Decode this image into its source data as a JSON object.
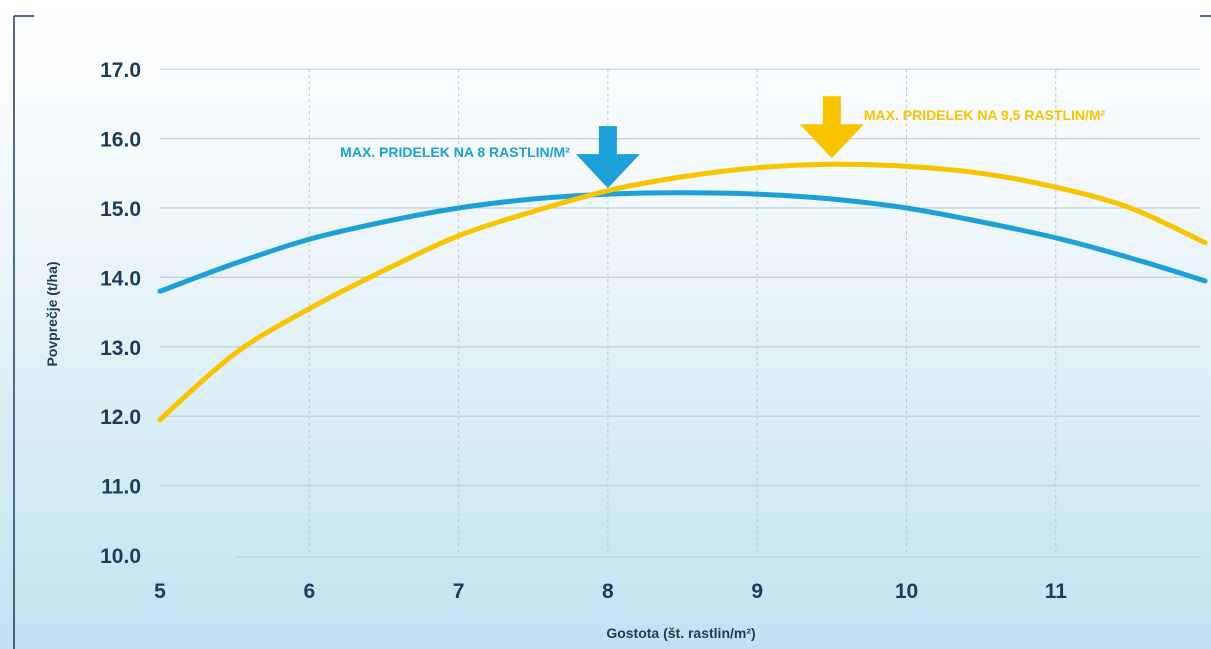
{
  "chart_data": {
    "type": "line",
    "xlabel": "Gostota (št. rastlin/m²)",
    "ylabel": "Povprečje (t/ha)",
    "xlim": [
      5,
      12
    ],
    "ylim": [
      10,
      17
    ],
    "x_ticks": [
      "5",
      "6",
      "7",
      "8",
      "9",
      "10",
      "11"
    ],
    "y_ticks": [
      "10.0",
      "11.0",
      "12.0",
      "13.0",
      "14.0",
      "15.0",
      "16.0",
      "17.0"
    ],
    "grid": true,
    "series": [
      {
        "color": "#1da0d8",
        "x": [
          5,
          5.5,
          6,
          6.5,
          7,
          7.5,
          8,
          8.5,
          9,
          9.5,
          10,
          10.5,
          11,
          11.5,
          12
        ],
        "y": [
          13.8,
          14.2,
          14.55,
          14.8,
          15.0,
          15.13,
          15.2,
          15.22,
          15.2,
          15.13,
          15.0,
          14.8,
          14.57,
          14.28,
          13.95
        ]
      },
      {
        "color": "#f8c400",
        "x": [
          5,
          5.5,
          6,
          6.5,
          7,
          7.5,
          8,
          8.5,
          9,
          9.5,
          10,
          10.5,
          11,
          11.5,
          12
        ],
        "y": [
          11.95,
          12.9,
          13.55,
          14.1,
          14.6,
          14.95,
          15.25,
          15.45,
          15.58,
          15.63,
          15.6,
          15.5,
          15.3,
          15.0,
          14.5
        ]
      }
    ],
    "annotations": [
      {
        "text": "MAX. PRIDELEK NA 8 RASTLIN/M²",
        "x": 8,
        "y": 15.2,
        "color": "#1da0d8"
      },
      {
        "text": "MAX. PRIDELEK NA 9,5 RASTLIN/M²",
        "x": 9.5,
        "y": 15.63,
        "color": "#f8c400"
      }
    ]
  }
}
